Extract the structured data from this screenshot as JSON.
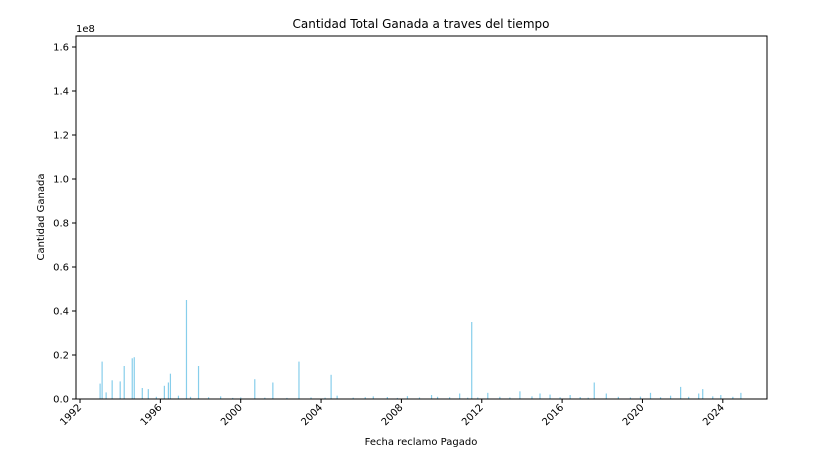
{
  "chart_data": {
    "type": "bar",
    "title": "Cantidad Total Ganada a traves del tiempo",
    "xlabel": "Fecha reclamo Pagado",
    "ylabel": "Cantidad Ganada",
    "y_scale_label": "1e8",
    "x_tick_labels": [
      "1992",
      "1996",
      "2000",
      "2004",
      "2008",
      "2012",
      "2016",
      "2020",
      "2024"
    ],
    "y_tick_labels": [
      "0.0",
      "0.2",
      "0.4",
      "0.6",
      "0.8",
      "1.0",
      "1.2",
      "1.4",
      "1.6"
    ],
    "xlim": [
      1991.8,
      2026.2
    ],
    "ylim": [
      0,
      165000000
    ],
    "grid": false,
    "bar_color": "#87CEEB",
    "points": [
      {
        "x": 1993.0,
        "y": 7000000
      },
      {
        "x": 1993.1,
        "y": 17000000
      },
      {
        "x": 1993.3,
        "y": 3000000
      },
      {
        "x": 1993.6,
        "y": 8500000
      },
      {
        "x": 1994.0,
        "y": 8000000
      },
      {
        "x": 1994.2,
        "y": 15000000
      },
      {
        "x": 1994.6,
        "y": 18500000
      },
      {
        "x": 1994.7,
        "y": 19000000
      },
      {
        "x": 1995.1,
        "y": 5000000
      },
      {
        "x": 1995.4,
        "y": 4500000
      },
      {
        "x": 1995.8,
        "y": 1000000
      },
      {
        "x": 1996.2,
        "y": 6000000
      },
      {
        "x": 1996.4,
        "y": 7500000
      },
      {
        "x": 1996.5,
        "y": 11500000
      },
      {
        "x": 1996.9,
        "y": 1500000
      },
      {
        "x": 1997.3,
        "y": 45000000
      },
      {
        "x": 1997.5,
        "y": 1000000
      },
      {
        "x": 1997.9,
        "y": 15000000
      },
      {
        "x": 1998.4,
        "y": 800000
      },
      {
        "x": 1999.0,
        "y": 1200000
      },
      {
        "x": 1999.6,
        "y": 500000
      },
      {
        "x": 2000.0,
        "y": 700000
      },
      {
        "x": 2000.7,
        "y": 9000000
      },
      {
        "x": 2001.2,
        "y": 600000
      },
      {
        "x": 2001.6,
        "y": 7500000
      },
      {
        "x": 2002.3,
        "y": 500000
      },
      {
        "x": 2002.9,
        "y": 17000000
      },
      {
        "x": 2003.5,
        "y": 700000
      },
      {
        "x": 2004.2,
        "y": 600000
      },
      {
        "x": 2004.5,
        "y": 11000000
      },
      {
        "x": 2004.8,
        "y": 1500000
      },
      {
        "x": 2005.6,
        "y": 600000
      },
      {
        "x": 2006.2,
        "y": 800000
      },
      {
        "x": 2006.6,
        "y": 1200000
      },
      {
        "x": 2007.3,
        "y": 900000
      },
      {
        "x": 2007.8,
        "y": 500000
      },
      {
        "x": 2008.3,
        "y": 1300000
      },
      {
        "x": 2008.9,
        "y": 700000
      },
      {
        "x": 2009.5,
        "y": 1800000
      },
      {
        "x": 2009.8,
        "y": 1000000
      },
      {
        "x": 2010.4,
        "y": 800000
      },
      {
        "x": 2010.9,
        "y": 2500000
      },
      {
        "x": 2011.3,
        "y": 600000
      },
      {
        "x": 2011.5,
        "y": 35000000
      },
      {
        "x": 2011.8,
        "y": 700000
      },
      {
        "x": 2012.3,
        "y": 2800000
      },
      {
        "x": 2012.9,
        "y": 1000000
      },
      {
        "x": 2013.4,
        "y": 700000
      },
      {
        "x": 2013.9,
        "y": 3500000
      },
      {
        "x": 2014.5,
        "y": 1200000
      },
      {
        "x": 2014.9,
        "y": 2500000
      },
      {
        "x": 2015.4,
        "y": 2000000
      },
      {
        "x": 2015.9,
        "y": 800000
      },
      {
        "x": 2016.4,
        "y": 1800000
      },
      {
        "x": 2016.9,
        "y": 900000
      },
      {
        "x": 2017.3,
        "y": 600000
      },
      {
        "x": 2017.6,
        "y": 7500000
      },
      {
        "x": 2018.2,
        "y": 2500000
      },
      {
        "x": 2018.8,
        "y": 1000000
      },
      {
        "x": 2019.4,
        "y": 700000
      },
      {
        "x": 2019.9,
        "y": 1100000
      },
      {
        "x": 2020.4,
        "y": 2800000
      },
      {
        "x": 2020.9,
        "y": 800000
      },
      {
        "x": 2021.4,
        "y": 1500000
      },
      {
        "x": 2021.9,
        "y": 5500000
      },
      {
        "x": 2022.3,
        "y": 1000000
      },
      {
        "x": 2022.8,
        "y": 2500000
      },
      {
        "x": 2023.0,
        "y": 4500000
      },
      {
        "x": 2023.5,
        "y": 1200000
      },
      {
        "x": 2023.9,
        "y": 1800000
      },
      {
        "x": 2024.5,
        "y": 1000000
      },
      {
        "x": 2024.9,
        "y": 2800000
      }
    ]
  }
}
